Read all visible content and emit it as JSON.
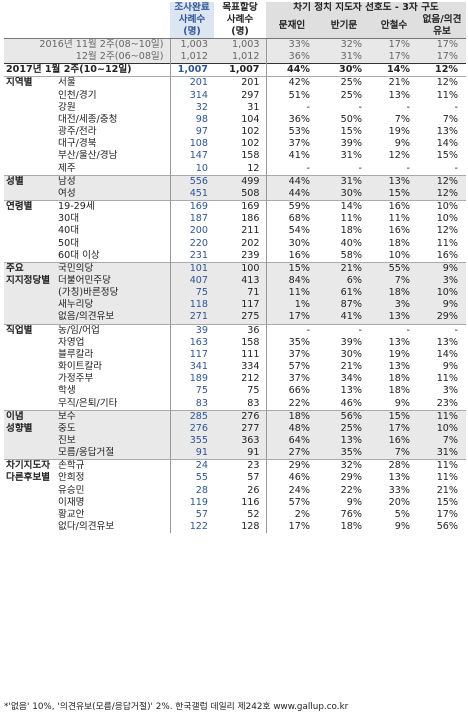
{
  "header": {
    "col_sample_top": "조사완료",
    "col_sample_sub": "사례수",
    "col_sample_unit": "(명)",
    "col_weight_top": "목표할당",
    "col_weight_sub": "사례수",
    "col_weight_unit": "(명)",
    "col_group_title": "차기 정치 지도자 선호도 - 3자 구도",
    "candidates": [
      "문재인",
      "반기문",
      "안철수",
      "없음/의견유보"
    ]
  },
  "history_rows": [
    {
      "label": "2016년 11월 2주(08~10일)",
      "n": "1,003",
      "w": "1,003",
      "v": [
        "33%",
        "32%",
        "17%",
        "17%"
      ]
    },
    {
      "label": "12월 2주(06~08일)",
      "n": "1,012",
      "w": "1,012",
      "v": [
        "36%",
        "31%",
        "17%",
        "17%"
      ]
    }
  ],
  "current_row": {
    "label": "2017년 1월 2주(10~12일)",
    "n": "1,007",
    "w": "1,007",
    "v": [
      "44%",
      "30%",
      "14%",
      "12%"
    ]
  },
  "groups": [
    {
      "name": "지역별",
      "shade": false,
      "rows": [
        {
          "label": "서울",
          "n": "201",
          "w": "201",
          "v": [
            "42%",
            "25%",
            "21%",
            "12%"
          ]
        },
        {
          "label": "인천/경기",
          "n": "314",
          "w": "297",
          "v": [
            "51%",
            "25%",
            "13%",
            "11%"
          ]
        },
        {
          "label": "강원",
          "n": "32",
          "w": "31",
          "v": [
            "-",
            "-",
            "-",
            "-"
          ]
        },
        {
          "label": "대전/세종/충청",
          "n": "98",
          "w": "104",
          "v": [
            "36%",
            "50%",
            "7%",
            "7%"
          ]
        },
        {
          "label": "광주/전라",
          "n": "97",
          "w": "102",
          "v": [
            "53%",
            "15%",
            "19%",
            "13%"
          ]
        },
        {
          "label": "대구/경북",
          "n": "108",
          "w": "102",
          "v": [
            "37%",
            "39%",
            "9%",
            "14%"
          ]
        },
        {
          "label": "부산/울산/경남",
          "n": "147",
          "w": "158",
          "v": [
            "41%",
            "31%",
            "12%",
            "15%"
          ]
        },
        {
          "label": "제주",
          "n": "10",
          "w": "12",
          "v": [
            "-",
            "-",
            "-",
            "-"
          ]
        }
      ]
    },
    {
      "name": "성별",
      "shade": true,
      "rows": [
        {
          "label": "남성",
          "n": "556",
          "w": "499",
          "v": [
            "44%",
            "31%",
            "13%",
            "12%"
          ]
        },
        {
          "label": "여성",
          "n": "451",
          "w": "508",
          "v": [
            "44%",
            "30%",
            "15%",
            "12%"
          ]
        }
      ]
    },
    {
      "name": "연령별",
      "shade": false,
      "rows": [
        {
          "label": "19-29세",
          "n": "169",
          "w": "169",
          "v": [
            "59%",
            "14%",
            "16%",
            "10%"
          ]
        },
        {
          "label": "30대",
          "n": "187",
          "w": "186",
          "v": [
            "68%",
            "11%",
            "11%",
            "10%"
          ]
        },
        {
          "label": "40대",
          "n": "200",
          "w": "211",
          "v": [
            "54%",
            "18%",
            "16%",
            "12%"
          ]
        },
        {
          "label": "50대",
          "n": "220",
          "w": "202",
          "v": [
            "30%",
            "40%",
            "18%",
            "11%"
          ]
        },
        {
          "label": "60대 이상",
          "n": "231",
          "w": "239",
          "v": [
            "16%",
            "58%",
            "10%",
            "16%"
          ]
        }
      ]
    },
    {
      "name": "주요",
      "name2": "지지정당별",
      "shade": true,
      "rows": [
        {
          "label": "국민의당",
          "n": "101",
          "w": "100",
          "v": [
            "15%",
            "21%",
            "55%",
            "9%"
          ]
        },
        {
          "label": "더불어민주당",
          "n": "407",
          "w": "413",
          "v": [
            "84%",
            "6%",
            "7%",
            "3%"
          ]
        },
        {
          "label": "(가칭)바른정당",
          "n": "75",
          "w": "71",
          "v": [
            "11%",
            "61%",
            "18%",
            "10%"
          ]
        },
        {
          "label": "새누리당",
          "n": "118",
          "w": "117",
          "v": [
            "1%",
            "87%",
            "3%",
            "9%"
          ]
        },
        {
          "label": "없음/의견유보",
          "n": "271",
          "w": "275",
          "v": [
            "17%",
            "41%",
            "13%",
            "29%"
          ]
        }
      ]
    },
    {
      "name": "직업별",
      "shade": false,
      "rows": [
        {
          "label": "농/임/어업",
          "n": "39",
          "w": "36",
          "v": [
            "-",
            "-",
            "-",
            "-"
          ]
        },
        {
          "label": "자영업",
          "n": "163",
          "w": "158",
          "v": [
            "35%",
            "39%",
            "13%",
            "13%"
          ]
        },
        {
          "label": "블루칼라",
          "n": "117",
          "w": "111",
          "v": [
            "37%",
            "30%",
            "19%",
            "14%"
          ]
        },
        {
          "label": "화이트칼라",
          "n": "341",
          "w": "334",
          "v": [
            "57%",
            "21%",
            "13%",
            "9%"
          ]
        },
        {
          "label": "가정주부",
          "n": "189",
          "w": "212",
          "v": [
            "37%",
            "34%",
            "18%",
            "11%"
          ]
        },
        {
          "label": "학생",
          "n": "75",
          "w": "75",
          "v": [
            "66%",
            "13%",
            "18%",
            "3%"
          ]
        },
        {
          "label": "무직/은퇴/기타",
          "n": "83",
          "w": "83",
          "v": [
            "22%",
            "46%",
            "9%",
            "23%"
          ]
        }
      ]
    },
    {
      "name": "이념",
      "name2": "성향별",
      "shade": true,
      "rows": [
        {
          "label": "보수",
          "n": "285",
          "w": "276",
          "v": [
            "18%",
            "56%",
            "15%",
            "11%"
          ]
        },
        {
          "label": "중도",
          "n": "276",
          "w": "277",
          "v": [
            "48%",
            "25%",
            "17%",
            "10%"
          ]
        },
        {
          "label": "진보",
          "n": "355",
          "w": "363",
          "v": [
            "64%",
            "13%",
            "16%",
            "7%"
          ]
        },
        {
          "label": "모름/응답거절",
          "n": "91",
          "w": "91",
          "v": [
            "27%",
            "35%",
            "7%",
            "31%"
          ]
        }
      ]
    },
    {
      "name": "차기지도자",
      "name2": "다른후보별",
      "shade": false,
      "rows": [
        {
          "label": "손학규",
          "n": "24",
          "w": "23",
          "v": [
            "29%",
            "32%",
            "28%",
            "11%"
          ]
        },
        {
          "label": "안희정",
          "n": "55",
          "w": "57",
          "v": [
            "46%",
            "29%",
            "13%",
            "11%"
          ]
        },
        {
          "label": "유승민",
          "n": "28",
          "w": "26",
          "v": [
            "24%",
            "22%",
            "33%",
            "21%"
          ]
        },
        {
          "label": "이재명",
          "n": "119",
          "w": "116",
          "v": [
            "57%",
            "9%",
            "20%",
            "15%"
          ]
        },
        {
          "label": "황교안",
          "n": "57",
          "w": "52",
          "v": [
            "2%",
            "76%",
            "5%",
            "17%"
          ]
        },
        {
          "label": "없다/의견유보",
          "n": "122",
          "w": "128",
          "v": [
            "17%",
            "18%",
            "9%",
            "56%"
          ]
        }
      ]
    }
  ],
  "footnote": "*'없음' 10%, '의견유보(모름/응답거절)' 2%. 한국갤럽 데일리 제242호 www.gallup.co.kr",
  "colors": {
    "accent": "#2f5597",
    "header_fill": "#dce6f2",
    "shade": "#e9e9e9"
  }
}
